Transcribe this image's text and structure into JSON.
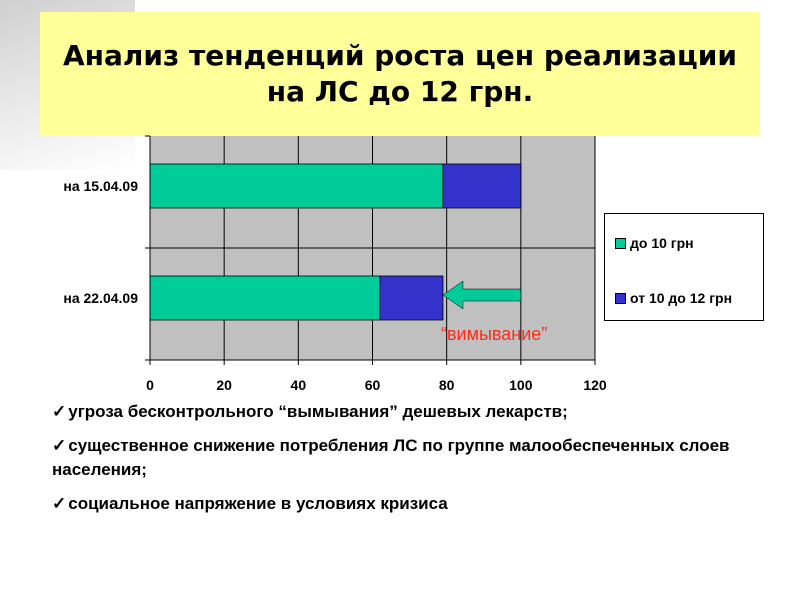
{
  "title": "Анализ тенденций роста цен реализации на ЛС до 12 грн.",
  "chart_data": {
    "type": "bar",
    "orientation": "horizontal",
    "stacked": true,
    "categories": [
      "на 15.04.09",
      "на 22.04.09"
    ],
    "series": [
      {
        "name": "до 10 грн",
        "values": [
          79,
          62
        ],
        "color": "#00cc99"
      },
      {
        "name": "от 10 до 12 грн",
        "values": [
          21,
          17
        ],
        "color": "#3333cc"
      }
    ],
    "xlim": [
      0,
      120
    ],
    "xticks": [
      "0",
      "20",
      "40",
      "60",
      "80",
      "100",
      "120"
    ],
    "grid": true,
    "plot_background": "#c0c0c0",
    "legend_position": "right",
    "annotation": {
      "text": "“вимывание”",
      "color": "#ff2a1a",
      "arrow_from": 100,
      "arrow_to": 79,
      "arrow_color": "#00cc99"
    }
  },
  "bullets": [
    "угроза бесконтрольного “вымывания” дешевых лекарств;",
    "существенное снижение потребления ЛС по группе малообеспеченных слоев населения;",
    "социальное напряжение в условиях кризиса"
  ],
  "check_mark": "✓"
}
